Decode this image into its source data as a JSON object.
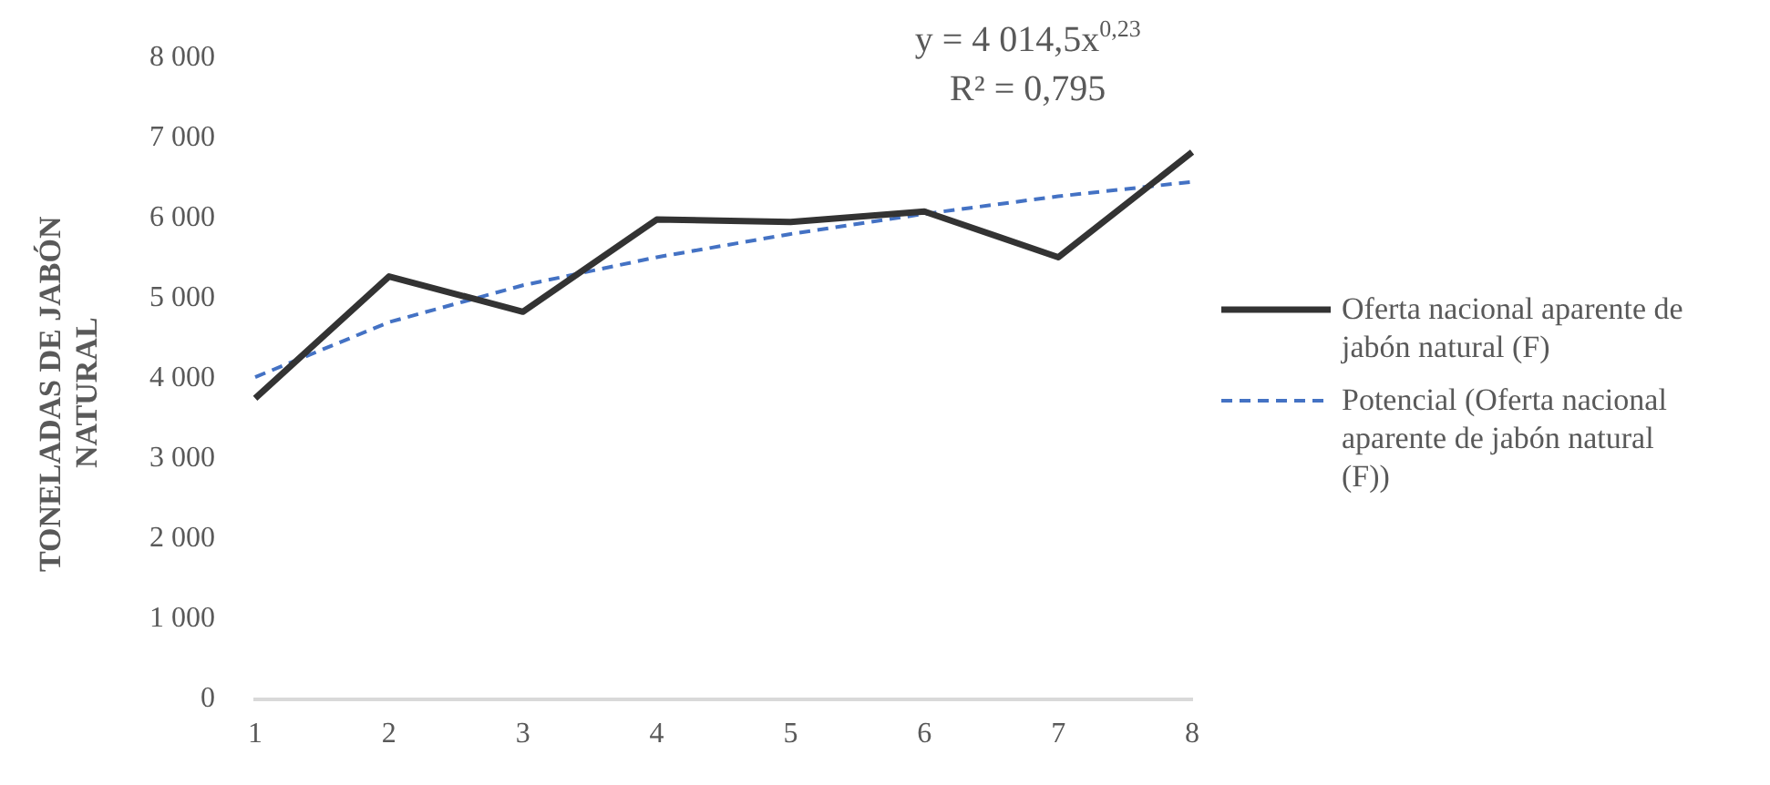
{
  "chart_data": {
    "type": "line",
    "ylabel": "TONELADAS DE JABÓN NATURAL",
    "categories": [
      "1",
      "2",
      "3",
      "4",
      "5",
      "6",
      "7",
      "8"
    ],
    "series": [
      {
        "name": "Oferta nacional aparente de jabón natural (F)",
        "color": "#333333",
        "line_style": "solid",
        "values": [
          3750,
          5270,
          4830,
          5980,
          5950,
          6080,
          5510,
          6820
        ]
      },
      {
        "name": "Potencial (Oferta nacional aparente de jabón natural (F))",
        "color": "#4472c4",
        "line_style": "dashed",
        "values": [
          4015,
          4700,
          5160,
          5510,
          5800,
          6050,
          6270,
          6450
        ]
      }
    ],
    "ylim": [
      0,
      8000
    ],
    "yticks": [
      {
        "value": 0,
        "label": "0"
      },
      {
        "value": 1000,
        "label": "1 000"
      },
      {
        "value": 2000,
        "label": "2 000"
      },
      {
        "value": 3000,
        "label": "3 000"
      },
      {
        "value": 4000,
        "label": "4 000"
      },
      {
        "value": 5000,
        "label": "5 000"
      },
      {
        "value": 6000,
        "label": "6 000"
      },
      {
        "value": 7000,
        "label": "7 000"
      },
      {
        "value": 8000,
        "label": "8 000"
      }
    ],
    "grid": false,
    "legend": "right",
    "marker": "none",
    "annotations": [
      "y = 4 014,5x$^{0,23}$",
      "R² = 0,795"
    ]
  }
}
